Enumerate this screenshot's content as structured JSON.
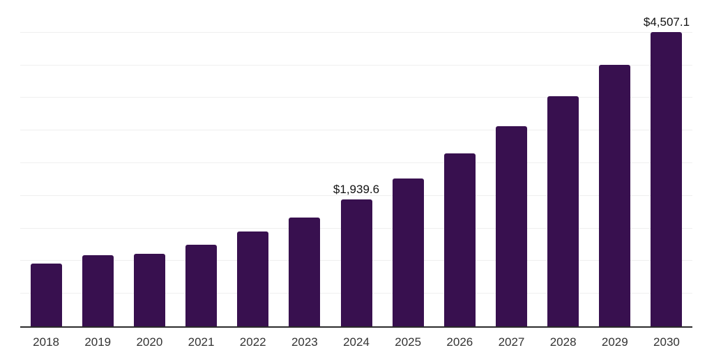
{
  "chart_data": {
    "type": "bar",
    "categories": [
      "2018",
      "2019",
      "2020",
      "2021",
      "2022",
      "2023",
      "2024",
      "2025",
      "2026",
      "2027",
      "2028",
      "2029",
      "2030"
    ],
    "values": [
      965,
      1085,
      1110,
      1255,
      1450,
      1670,
      1939.6,
      2270,
      2645,
      3070,
      3525,
      4005,
      4507.1
    ],
    "value_labels": [
      "",
      "",
      "",
      "",
      "",
      "",
      "$1,939.6",
      "",
      "",
      "",
      "",
      "",
      "$4,507.1"
    ],
    "title": "",
    "xlabel": "",
    "ylabel": "",
    "ylim": [
      0,
      5000
    ],
    "grid_step": 500,
    "grid": "horizontal",
    "y_tick_labels_visible": false,
    "legend": "none",
    "bar_color": "#38104F",
    "axis_line_color": "#2b2b2b",
    "gridline_color": "#efefef",
    "value_label_color": "#111111",
    "tick_label_color": "#333333"
  }
}
